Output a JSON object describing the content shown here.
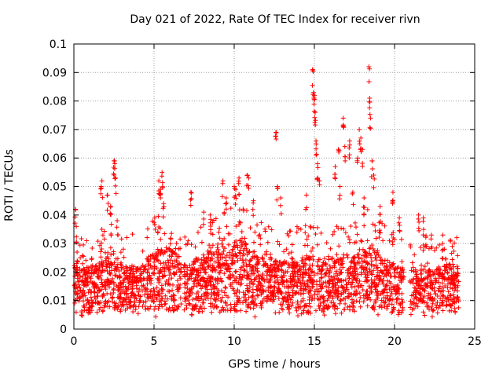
{
  "chart_data": {
    "type": "scatter",
    "title": "Day 021 of 2022, Rate Of TEC Index for receiver rivn",
    "xlabel": "GPS time / hours",
    "ylabel": "ROTI / TECUs",
    "xlim": [
      0,
      25
    ],
    "ylim": [
      0,
      0.1
    ],
    "xticks": [
      0,
      5,
      10,
      15,
      20,
      25
    ],
    "yticks": [
      0,
      0.01,
      0.02,
      0.03,
      0.04,
      0.05,
      0.06,
      0.07,
      0.08,
      0.09,
      0.1
    ],
    "xtick_labels": [
      "0",
      "5",
      "10",
      "15",
      "20",
      "25"
    ],
    "ytick_labels": [
      "0",
      "0.01",
      "0.02",
      "0.03",
      "0.04",
      "0.05",
      "0.06",
      "0.07",
      "0.08",
      "0.09",
      "0.1"
    ],
    "grid": true,
    "marker": "+",
    "color": "#ff0000",
    "series": [
      {
        "envelope": [
          [
            0.0,
            0.022
          ],
          [
            0.5,
            0.021
          ],
          [
            1.0,
            0.022
          ],
          [
            1.5,
            0.023
          ],
          [
            2.0,
            0.025
          ],
          [
            2.5,
            0.027
          ],
          [
            3.0,
            0.023
          ],
          [
            3.5,
            0.022
          ],
          [
            4.0,
            0.022
          ],
          [
            4.5,
            0.024
          ],
          [
            5.0,
            0.027
          ],
          [
            5.5,
            0.03
          ],
          [
            6.0,
            0.028
          ],
          [
            6.5,
            0.026
          ],
          [
            7.0,
            0.022
          ],
          [
            7.5,
            0.024
          ],
          [
            8.0,
            0.026
          ],
          [
            8.5,
            0.027
          ],
          [
            9.0,
            0.028
          ],
          [
            9.5,
            0.03
          ],
          [
            10.0,
            0.031
          ],
          [
            10.5,
            0.032
          ],
          [
            11.0,
            0.028
          ],
          [
            11.5,
            0.026
          ],
          [
            12.0,
            0.025
          ],
          [
            12.5,
            0.024
          ],
          [
            13.0,
            0.024
          ],
          [
            13.5,
            0.024
          ],
          [
            14.0,
            0.025
          ],
          [
            14.5,
            0.025
          ],
          [
            15.0,
            0.026
          ],
          [
            15.5,
            0.024
          ],
          [
            16.0,
            0.023
          ],
          [
            16.5,
            0.025
          ],
          [
            17.0,
            0.027
          ],
          [
            17.5,
            0.026
          ],
          [
            18.0,
            0.029
          ],
          [
            18.5,
            0.031
          ],
          [
            19.0,
            0.026
          ],
          [
            19.5,
            0.024
          ],
          [
            20.0,
            0.023
          ],
          [
            20.5,
            0.022
          ],
          [
            21.0,
            0.021
          ],
          [
            21.5,
            0.021
          ],
          [
            22.0,
            0.021
          ],
          [
            22.5,
            0.021
          ],
          [
            23.0,
            0.022
          ],
          [
            23.5,
            0.023
          ],
          [
            24.0,
            0.022
          ]
        ],
        "gaps": [
          [
            6.7,
            6.85
          ],
          [
            20.6,
            20.95
          ]
        ],
        "peaks": [
          [
            0.1,
            0.042
          ],
          [
            0.15,
            0.036
          ],
          [
            0.2,
            0.027
          ],
          [
            1.7,
            0.05
          ],
          [
            1.75,
            0.052
          ],
          [
            2.1,
            0.047
          ],
          [
            2.3,
            0.043
          ],
          [
            2.5,
            0.059
          ],
          [
            2.55,
            0.058
          ],
          [
            2.6,
            0.053
          ],
          [
            2.7,
            0.038
          ],
          [
            5.3,
            0.052
          ],
          [
            5.4,
            0.049
          ],
          [
            5.5,
            0.055
          ],
          [
            5.6,
            0.044
          ],
          [
            7.3,
            0.048
          ],
          [
            8.1,
            0.041
          ],
          [
            8.5,
            0.04
          ],
          [
            9.3,
            0.052
          ],
          [
            9.5,
            0.046
          ],
          [
            10.0,
            0.05
          ],
          [
            10.1,
            0.049
          ],
          [
            10.3,
            0.053
          ],
          [
            10.8,
            0.054
          ],
          [
            10.9,
            0.053
          ],
          [
            11.2,
            0.045
          ],
          [
            12.6,
            0.069
          ],
          [
            12.7,
            0.05
          ],
          [
            12.9,
            0.046
          ],
          [
            14.5,
            0.047
          ],
          [
            14.9,
            0.091
          ],
          [
            14.95,
            0.083
          ],
          [
            15.0,
            0.082
          ],
          [
            15.05,
            0.076
          ],
          [
            15.1,
            0.066
          ],
          [
            15.2,
            0.058
          ],
          [
            15.3,
            0.052
          ],
          [
            16.3,
            0.057
          ],
          [
            16.5,
            0.063
          ],
          [
            16.6,
            0.05
          ],
          [
            16.8,
            0.074
          ],
          [
            16.9,
            0.064
          ],
          [
            17.2,
            0.066
          ],
          [
            17.4,
            0.048
          ],
          [
            17.7,
            0.06
          ],
          [
            17.8,
            0.07
          ],
          [
            17.9,
            0.067
          ],
          [
            18.0,
            0.063
          ],
          [
            18.1,
            0.046
          ],
          [
            18.4,
            0.092
          ],
          [
            18.45,
            0.081
          ],
          [
            18.5,
            0.074
          ],
          [
            18.6,
            0.059
          ],
          [
            18.7,
            0.054
          ],
          [
            19.1,
            0.043
          ],
          [
            19.9,
            0.048
          ],
          [
            20.3,
            0.039
          ],
          [
            21.5,
            0.04
          ],
          [
            21.8,
            0.039
          ],
          [
            22.3,
            0.033
          ],
          [
            23.0,
            0.03
          ],
          [
            23.6,
            0.029
          ]
        ]
      }
    ]
  }
}
